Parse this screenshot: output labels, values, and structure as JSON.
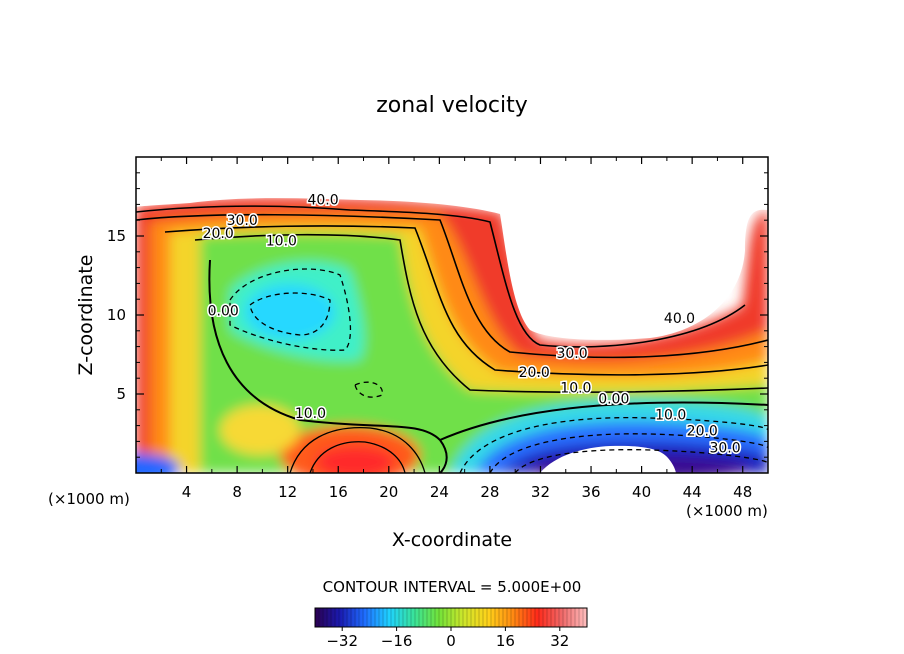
{
  "chart_data": {
    "type": "heatmap",
    "title": "zonal velocity",
    "xlabel": "X-coordinate",
    "ylabel": "Z-coordinate",
    "x_unit_label": "(×1000 m)",
    "x_unit_label_right": "(×1000 m)",
    "xlim": [
      0,
      50
    ],
    "ylim": [
      0,
      20
    ],
    "x_ticks": [
      4,
      8,
      12,
      16,
      20,
      24,
      28,
      32,
      36,
      40,
      44,
      48
    ],
    "x_tick_labels": [
      "4",
      "8",
      "12",
      "16",
      "20",
      "24",
      "28",
      "32",
      "36",
      "40",
      "44",
      "48"
    ],
    "y_ticks": [
      5,
      10,
      15
    ],
    "y_tick_labels": [
      "5",
      "10",
      "15"
    ],
    "contour_interval_text": "CONTOUR INTERVAL = 5.000E+00",
    "contour_interval": 5.0,
    "colorbar": {
      "min": -40,
      "max": 40,
      "ticks": [
        -32,
        -16,
        0,
        16,
        32
      ],
      "tick_labels": [
        "−32",
        "−16",
        "0",
        "16",
        "32"
      ],
      "palette": [
        "#2b0050",
        "#1a1ab0",
        "#1f6dff",
        "#1fd2ff",
        "#39e39a",
        "#72e33a",
        "#cde62b",
        "#ffd21a",
        "#ff8a12",
        "#ff2a1a",
        "#f06a6a",
        "#ffc0c0"
      ]
    },
    "contour_labels": [
      {
        "text": "40.0",
        "x": 14.8,
        "z": 17.3
      },
      {
        "text": "30.0",
        "x": 8.4,
        "z": 16.0
      },
      {
        "text": "20.0",
        "x": 6.5,
        "z": 15.2
      },
      {
        "text": "10.0",
        "x": 11.5,
        "z": 14.7
      },
      {
        "text": "0.00",
        "x": 6.9,
        "z": 10.3
      },
      {
        "text": "10.0",
        "x": 13.8,
        "z": 3.8
      },
      {
        "text": "40.0",
        "x": 43.0,
        "z": 9.8
      },
      {
        "text": "30.0",
        "x": 34.5,
        "z": 7.6
      },
      {
        "text": "20.0",
        "x": 31.5,
        "z": 6.4
      },
      {
        "text": "10.0",
        "x": 34.8,
        "z": 5.4
      },
      {
        "text": "0.00",
        "x": 37.8,
        "z": 4.7
      },
      {
        "text": "10.0",
        "x": 42.3,
        "z": 3.7
      },
      {
        "text": "20.0",
        "x": 44.8,
        "z": 2.7
      },
      {
        "text": "30.0",
        "x": 46.6,
        "z": 1.6
      }
    ],
    "features": [
      {
        "name": "upper-jet",
        "x_range": [
          0,
          25
        ],
        "z": 16.5,
        "u_max": 40
      },
      {
        "name": "negative-core",
        "x": 13,
        "z": 10.5,
        "u_min": -15
      },
      {
        "name": "lower-reversed-jet",
        "x": 38,
        "z": 1.5,
        "u_min": -40
      },
      {
        "name": "surface-positive-jet",
        "x": 17,
        "z": 1.5,
        "u_max": 32
      }
    ]
  }
}
